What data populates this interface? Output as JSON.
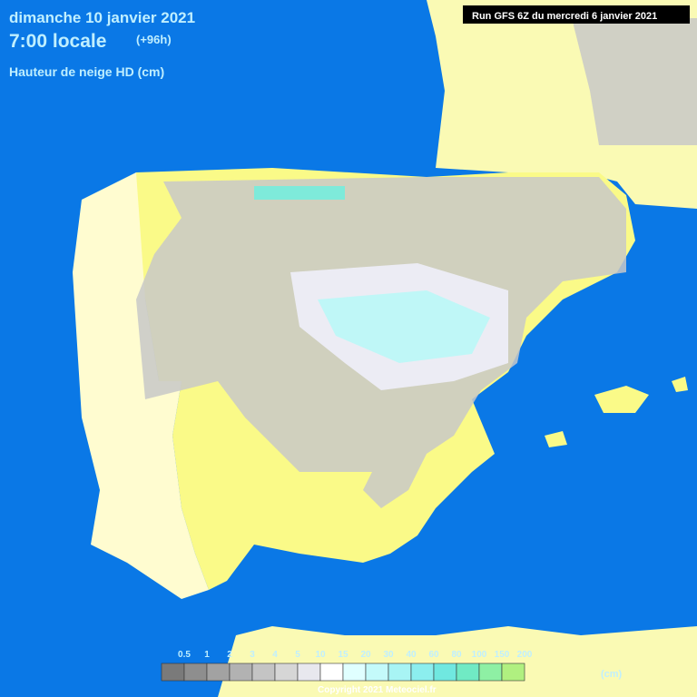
{
  "header": {
    "date": "dimanche 10 janvier 2021",
    "time": "7:00 locale",
    "lead": "(+96h)",
    "field": "Hauteur de neige HD (cm)",
    "run": "Run GFS 6Z du mercredi 6 janvier 2021"
  },
  "legend": {
    "unit": "(cm)",
    "items": [
      {
        "label": "0.5",
        "color": "#7a7a7a"
      },
      {
        "label": "1",
        "color": "#8e8e8e"
      },
      {
        "label": "2",
        "color": "#a2a2a2"
      },
      {
        "label": "3",
        "color": "#b2b2b2"
      },
      {
        "label": "4",
        "color": "#c4c4c4"
      },
      {
        "label": "5",
        "color": "#d6d6d6"
      },
      {
        "label": "10",
        "color": "#e8e8ee"
      },
      {
        "label": "15",
        "color": "#ffffff"
      },
      {
        "label": "20",
        "color": "#e0ffff"
      },
      {
        "label": "30",
        "color": "#c4fafa"
      },
      {
        "label": "40",
        "color": "#a8f4f4"
      },
      {
        "label": "60",
        "color": "#8ceeee"
      },
      {
        "label": "80",
        "color": "#70e8e0"
      },
      {
        "label": "100",
        "color": "#70eac4"
      },
      {
        "label": "150",
        "color": "#8ef0a4"
      },
      {
        "label": "200",
        "color": "#b0f080"
      }
    ]
  },
  "footer": {
    "copyright": "Copyright 2021 Meteociel.fr"
  }
}
